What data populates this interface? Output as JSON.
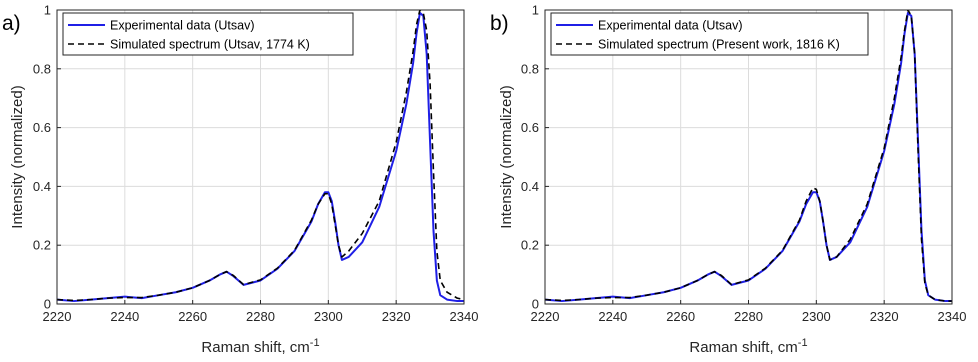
{
  "figure": {
    "x_tick_labels": [
      "2220",
      "2240",
      "2260",
      "2280",
      "2300",
      "2320",
      "2340"
    ],
    "y_tick_labels": [
      "0",
      "0.2",
      "0.4",
      "0.6",
      "0.8",
      "1"
    ],
    "colors": {
      "experimental": "#1f1fe6",
      "simulated": "#000000",
      "grid": "#dcdcdc",
      "axis": "#262626"
    }
  },
  "chart_data": [
    {
      "type": "line",
      "panel_label": "a)",
      "xlabel": "Raman shift, cm",
      "xlabel_sup": "-1",
      "ylabel": "Intensity (normalized)",
      "xlim": [
        2220,
        2340
      ],
      "ylim": [
        0,
        1
      ],
      "grid": true,
      "legend_position": "top-left",
      "series": [
        {
          "name": "Experimental data (Utsav)",
          "style": "solid",
          "x": [
            2220,
            2225,
            2230,
            2235,
            2240,
            2245,
            2250,
            2255,
            2260,
            2265,
            2268,
            2270,
            2272,
            2275,
            2280,
            2285,
            2290,
            2295,
            2297,
            2299,
            2300,
            2301,
            2302,
            2303,
            2304,
            2306,
            2310,
            2315,
            2320,
            2323,
            2325,
            2326,
            2327,
            2328,
            2329,
            2330,
            2331,
            2332,
            2333,
            2335,
            2338,
            2340
          ],
          "y": [
            0.015,
            0.01,
            0.015,
            0.02,
            0.025,
            0.02,
            0.03,
            0.04,
            0.055,
            0.08,
            0.1,
            0.11,
            0.095,
            0.065,
            0.08,
            0.12,
            0.18,
            0.28,
            0.34,
            0.38,
            0.38,
            0.35,
            0.28,
            0.2,
            0.15,
            0.16,
            0.21,
            0.33,
            0.52,
            0.68,
            0.82,
            0.92,
            0.99,
            0.98,
            0.85,
            0.55,
            0.25,
            0.08,
            0.03,
            0.015,
            0.01,
            0.01
          ]
        },
        {
          "name": "Simulated spectrum (Utsav, 1774 K)",
          "style": "dashed",
          "x": [
            2220,
            2225,
            2230,
            2235,
            2240,
            2245,
            2250,
            2255,
            2260,
            2265,
            2268,
            2270,
            2272,
            2275,
            2280,
            2285,
            2290,
            2295,
            2297,
            2299,
            2300,
            2301,
            2302,
            2303,
            2304,
            2306,
            2310,
            2315,
            2320,
            2323,
            2325,
            2326,
            2327,
            2328,
            2329,
            2330,
            2331,
            2332,
            2333,
            2335,
            2338,
            2340
          ],
          "y": [
            0.015,
            0.012,
            0.015,
            0.02,
            0.022,
            0.022,
            0.03,
            0.04,
            0.055,
            0.08,
            0.1,
            0.11,
            0.097,
            0.066,
            0.082,
            0.122,
            0.182,
            0.285,
            0.34,
            0.375,
            0.375,
            0.34,
            0.27,
            0.2,
            0.16,
            0.18,
            0.24,
            0.35,
            0.55,
            0.72,
            0.86,
            0.95,
            1.0,
            0.99,
            0.93,
            0.75,
            0.45,
            0.18,
            0.08,
            0.04,
            0.02,
            0.015
          ]
        }
      ]
    },
    {
      "type": "line",
      "panel_label": "b)",
      "xlabel": "Raman shift, cm",
      "xlabel_sup": "-1",
      "ylabel": "Intensity (normalized)",
      "xlim": [
        2220,
        2340
      ],
      "ylim": [
        0,
        1
      ],
      "grid": true,
      "legend_position": "top-left",
      "series": [
        {
          "name": "Experimental data (Utsav)",
          "style": "solid",
          "x": [
            2220,
            2225,
            2230,
            2235,
            2240,
            2245,
            2250,
            2255,
            2260,
            2265,
            2268,
            2270,
            2272,
            2275,
            2280,
            2285,
            2290,
            2295,
            2297,
            2299,
            2300,
            2301,
            2302,
            2303,
            2304,
            2306,
            2310,
            2315,
            2320,
            2323,
            2325,
            2326,
            2327,
            2328,
            2329,
            2330,
            2331,
            2332,
            2333,
            2335,
            2338,
            2340
          ],
          "y": [
            0.015,
            0.01,
            0.015,
            0.02,
            0.025,
            0.02,
            0.03,
            0.04,
            0.055,
            0.08,
            0.1,
            0.11,
            0.095,
            0.065,
            0.08,
            0.12,
            0.18,
            0.28,
            0.34,
            0.38,
            0.38,
            0.35,
            0.28,
            0.2,
            0.15,
            0.16,
            0.21,
            0.33,
            0.52,
            0.68,
            0.82,
            0.92,
            0.99,
            0.98,
            0.85,
            0.55,
            0.25,
            0.08,
            0.03,
            0.015,
            0.01,
            0.01
          ]
        },
        {
          "name": "Simulated spectrum (Present work, 1816 K)",
          "style": "dashed",
          "x": [
            2220,
            2225,
            2230,
            2235,
            2240,
            2245,
            2250,
            2255,
            2260,
            2265,
            2268,
            2270,
            2272,
            2275,
            2280,
            2285,
            2290,
            2295,
            2297,
            2299,
            2300,
            2301,
            2302,
            2303,
            2304,
            2306,
            2310,
            2315,
            2320,
            2323,
            2325,
            2326,
            2327,
            2328,
            2329,
            2330,
            2331,
            2332,
            2333,
            2335,
            2338,
            2340
          ],
          "y": [
            0.015,
            0.012,
            0.015,
            0.02,
            0.022,
            0.022,
            0.03,
            0.04,
            0.055,
            0.08,
            0.1,
            0.11,
            0.097,
            0.066,
            0.082,
            0.122,
            0.182,
            0.285,
            0.35,
            0.395,
            0.39,
            0.35,
            0.28,
            0.2,
            0.15,
            0.16,
            0.22,
            0.34,
            0.53,
            0.7,
            0.84,
            0.93,
            1.0,
            0.98,
            0.85,
            0.52,
            0.22,
            0.07,
            0.03,
            0.015,
            0.01,
            0.01
          ]
        }
      ]
    }
  ]
}
